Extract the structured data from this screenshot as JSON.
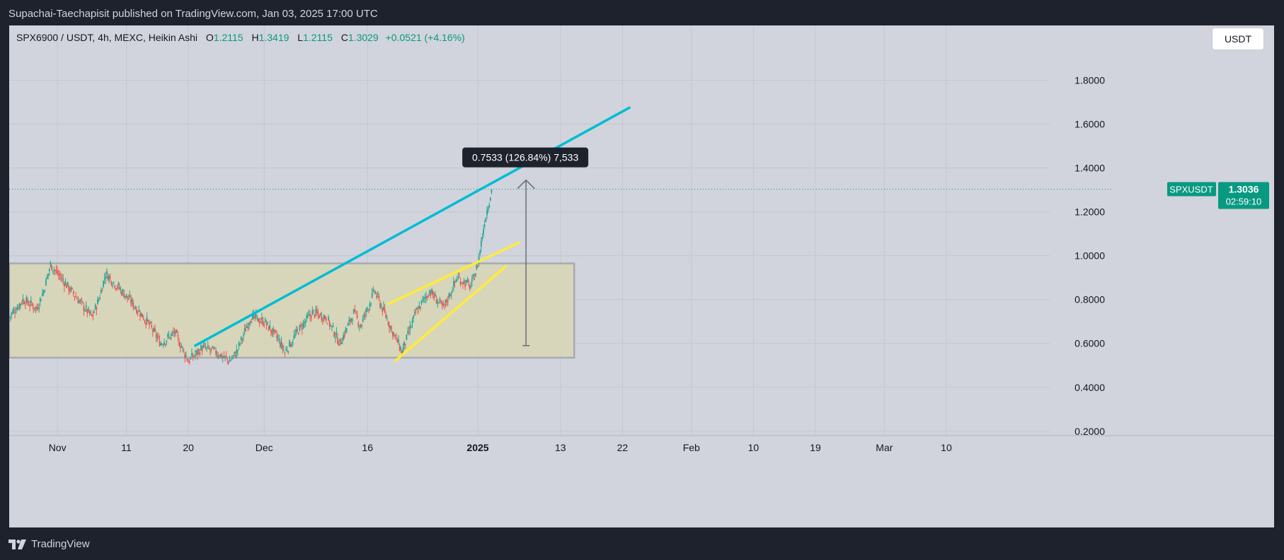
{
  "header": {
    "publish_text": "Supachai-Taechapisit published on TradingView.com, Jan 03, 2025 17:00 UTC"
  },
  "legend": {
    "symbol": "SPX6900 / USDT, 4h, MEXC, Heikin Ashi",
    "o_label": "O",
    "o_value": "1.2115",
    "h_label": "H",
    "h_value": "1.3419",
    "l_label": "L",
    "l_value": "1.2115",
    "c_label": "C",
    "c_value": "1.3029",
    "change": "+0.0521 (+4.16%)"
  },
  "currency_button": "USDT",
  "footer": {
    "brand": "TradingView"
  },
  "colors": {
    "up": "#26a69a",
    "down": "#ef5350",
    "trendline": "#00bcd4",
    "wedge": "#ffeb3b",
    "range_box": "#d8d6b4",
    "price_tag": "#089981"
  },
  "chart_data": {
    "type": "candlestick",
    "style": "Heikin Ashi",
    "y_axis": {
      "ticks": [
        "1.8000",
        "1.6000",
        "1.4000",
        "1.2000",
        "1.0000",
        "0.8000",
        "0.6000",
        "0.4000",
        "0.2000"
      ],
      "tick_values": [
        1.8,
        1.6,
        1.4,
        1.2,
        1.0,
        0.8,
        0.6,
        0.4,
        0.2
      ],
      "range": [
        0.18,
        2.05
      ]
    },
    "x_axis": {
      "ticks": [
        {
          "label": "Nov",
          "date": "2024-11-01",
          "bold": false
        },
        {
          "label": "11",
          "date": "2024-11-11",
          "bold": false
        },
        {
          "label": "20",
          "date": "2024-11-20",
          "bold": false
        },
        {
          "label": "Dec",
          "date": "2024-12-01",
          "bold": false
        },
        {
          "label": "16",
          "date": "2024-12-16",
          "bold": false
        },
        {
          "label": "2025",
          "date": "2025-01-01",
          "bold": true
        },
        {
          "label": "13",
          "date": "2025-01-13",
          "bold": false
        },
        {
          "label": "22",
          "date": "2025-01-22",
          "bold": false
        },
        {
          "label": "Feb",
          "date": "2025-02-01",
          "bold": false
        },
        {
          "label": "10",
          "date": "2025-02-10",
          "bold": false
        },
        {
          "label": "19",
          "date": "2025-02-19",
          "bold": false
        },
        {
          "label": "Mar",
          "date": "2025-03-01",
          "bold": false
        },
        {
          "label": "10",
          "date": "2025-03-10",
          "bold": false
        }
      ],
      "range": [
        "2024-10-25",
        "2025-03-25"
      ]
    },
    "price_path": [
      {
        "date": "2024-10-25",
        "price": 0.72
      },
      {
        "date": "2024-10-27",
        "price": 0.8
      },
      {
        "date": "2024-10-29",
        "price": 0.76
      },
      {
        "date": "2024-10-30",
        "price": 0.84
      },
      {
        "date": "2024-10-31",
        "price": 0.96
      },
      {
        "date": "2024-11-02",
        "price": 0.88
      },
      {
        "date": "2024-11-04",
        "price": 0.8
      },
      {
        "date": "2024-11-06",
        "price": 0.72
      },
      {
        "date": "2024-11-07",
        "price": 0.8
      },
      {
        "date": "2024-11-08",
        "price": 0.92
      },
      {
        "date": "2024-11-10",
        "price": 0.85
      },
      {
        "date": "2024-11-12",
        "price": 0.78
      },
      {
        "date": "2024-11-14",
        "price": 0.7
      },
      {
        "date": "2024-11-16",
        "price": 0.6
      },
      {
        "date": "2024-11-18",
        "price": 0.65
      },
      {
        "date": "2024-11-20",
        "price": 0.52
      },
      {
        "date": "2024-11-22",
        "price": 0.58
      },
      {
        "date": "2024-11-24",
        "price": 0.56
      },
      {
        "date": "2024-11-26",
        "price": 0.52
      },
      {
        "date": "2024-11-27",
        "price": 0.56
      },
      {
        "date": "2024-11-29",
        "price": 0.72
      },
      {
        "date": "2024-12-01",
        "price": 0.7
      },
      {
        "date": "2024-12-03",
        "price": 0.62
      },
      {
        "date": "2024-12-04",
        "price": 0.56
      },
      {
        "date": "2024-12-06",
        "price": 0.66
      },
      {
        "date": "2024-12-08",
        "price": 0.74
      },
      {
        "date": "2024-12-10",
        "price": 0.72
      },
      {
        "date": "2024-12-12",
        "price": 0.6
      },
      {
        "date": "2024-12-14",
        "price": 0.74
      },
      {
        "date": "2024-12-15",
        "price": 0.68
      },
      {
        "date": "2024-12-17",
        "price": 0.84
      },
      {
        "date": "2024-12-19",
        "price": 0.7
      },
      {
        "date": "2024-12-21",
        "price": 0.56
      },
      {
        "date": "2024-12-23",
        "price": 0.74
      },
      {
        "date": "2024-12-25",
        "price": 0.84
      },
      {
        "date": "2024-12-27",
        "price": 0.76
      },
      {
        "date": "2024-12-29",
        "price": 0.9
      },
      {
        "date": "2024-12-31",
        "price": 0.86
      },
      {
        "date": "2025-01-01",
        "price": 0.96
      },
      {
        "date": "2025-01-02",
        "price": 1.16
      },
      {
        "date": "2025-01-03",
        "price": 1.3
      }
    ],
    "current_price": {
      "symbol": "SPXUSDT",
      "price": 1.3036,
      "label": "1.3036",
      "countdown": "02:59:10"
    },
    "drawings": {
      "range_box": {
        "from": "2024-10-25",
        "to": "2025-01-15",
        "top": 0.965,
        "bottom": 0.535
      },
      "ascending_trendline": {
        "from": {
          "date": "2024-11-21",
          "price": 0.59
        },
        "to": {
          "date": "2025-01-23",
          "price": 1.675
        }
      },
      "wedge_upper": {
        "from": {
          "date": "2024-12-19",
          "price": 0.78
        },
        "to": {
          "date": "2025-01-07",
          "price": 1.06
        }
      },
      "wedge_lower": {
        "from": {
          "date": "2024-12-20",
          "price": 0.52
        },
        "to": {
          "date": "2025-01-05",
          "price": 0.95
        }
      },
      "measure_arrow": {
        "date": "2025-01-08",
        "from_price": 0.59,
        "to_price": 1.345,
        "label": "0.7533 (126.84%) 7,533"
      }
    }
  }
}
